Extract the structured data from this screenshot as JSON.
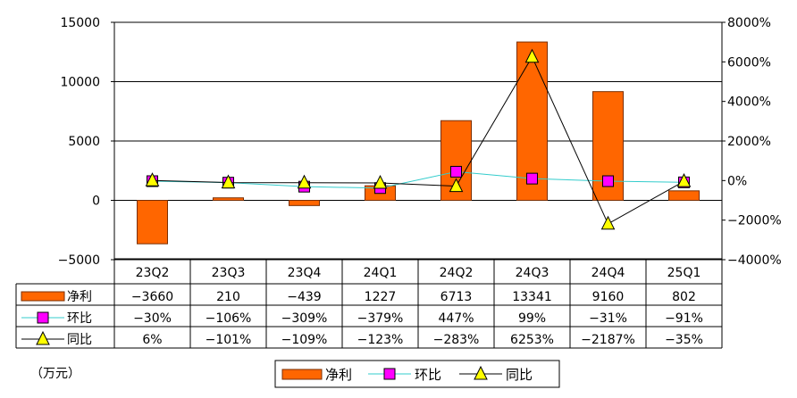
{
  "chart_data": {
    "type": "bar",
    "categories": [
      "23Q2",
      "23Q3",
      "23Q4",
      "24Q1",
      "24Q2",
      "24Q3",
      "24Q4",
      "25Q1"
    ],
    "series": [
      {
        "name": "净利",
        "type": "bar",
        "axis": "left",
        "values": [
          -3660,
          210,
          -439,
          1227,
          6713,
          13341,
          9160,
          802
        ],
        "color": "#FF6600"
      },
      {
        "name": "环比",
        "type": "line",
        "axis": "right",
        "values": [
          -30,
          -106,
          -309,
          -379,
          447,
          99,
          -31,
          -91
        ],
        "color": "#33CCCC",
        "marker": "square",
        "marker_color": "#FF00FF"
      },
      {
        "name": "同比",
        "type": "line",
        "axis": "right",
        "values": [
          6,
          -101,
          -109,
          -123,
          -283,
          6253,
          -2187,
          -35
        ],
        "color": "#000000",
        "marker": "triangle",
        "marker_color": "#FFFF00"
      }
    ],
    "y_left": {
      "range": [
        -5000,
        15000
      ],
      "ticks": [
        "15000",
        "10000",
        "5000",
        "0",
        "−5000"
      ],
      "tick_values": [
        15000,
        10000,
        5000,
        0,
        -5000
      ]
    },
    "y_right": {
      "range": [
        -4000,
        8000
      ],
      "ticks": [
        "8000%",
        "6000%",
        "4000%",
        "2000%",
        "0%",
        "−2000%",
        "−4000%"
      ],
      "tick_values": [
        8000,
        6000,
        4000,
        2000,
        0,
        -2000,
        -4000
      ]
    },
    "gridlines": true,
    "data_table": true,
    "table_rows": [
      {
        "name": "净利",
        "cells": [
          "−3660",
          "210",
          "−439",
          "1227",
          "6713",
          "13341",
          "9160",
          "802"
        ]
      },
      {
        "name": "环比",
        "cells": [
          "−30%",
          "−106%",
          "−309%",
          "−379%",
          "447%",
          "99%",
          "−31%",
          "−91%"
        ]
      },
      {
        "name": "同比",
        "cells": [
          "6%",
          "−101%",
          "−109%",
          "−123%",
          "−283%",
          "6253%",
          "−2187%",
          "−35%"
        ]
      }
    ],
    "unit_label": "（万元）",
    "legend": {
      "placement": "bottom",
      "entries": [
        "净利",
        "环比",
        "同比"
      ]
    }
  }
}
